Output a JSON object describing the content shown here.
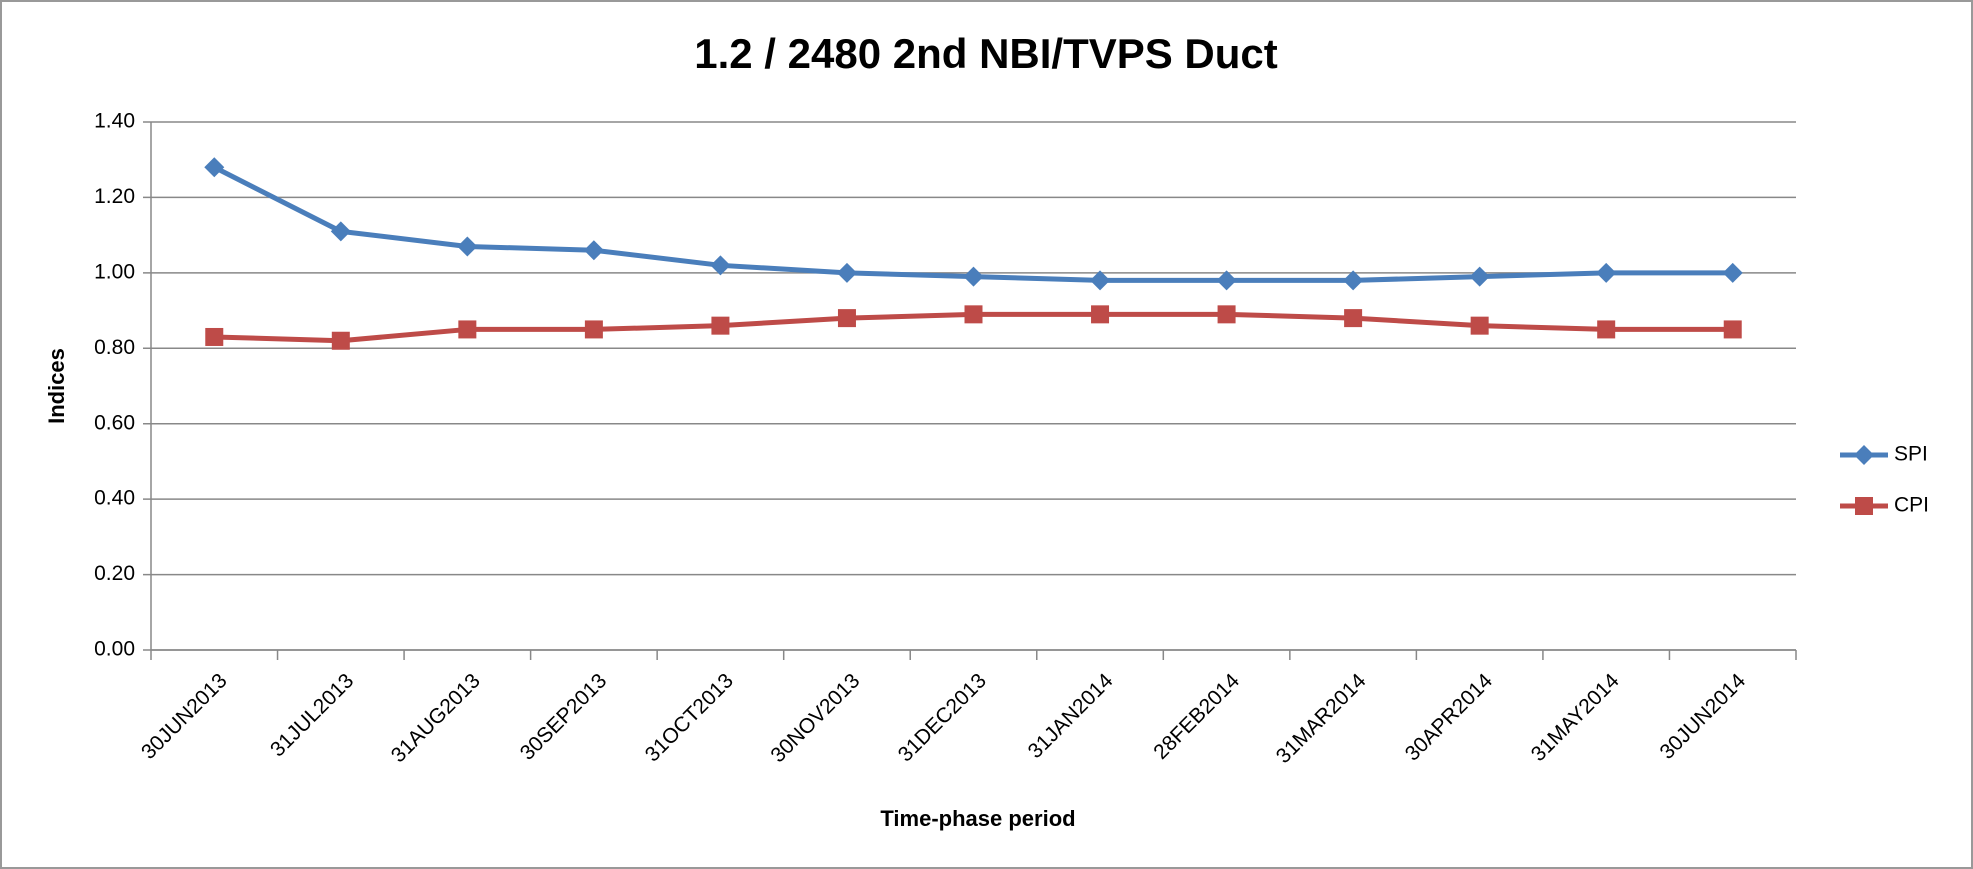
{
  "chart_data": {
    "type": "line",
    "title": "1.2 / 2480 2nd NBI/TVPS Duct",
    "x_label": "Time-phase period",
    "y_label": "Indices",
    "categories": [
      "30JUN2013",
      "31JUL2013",
      "31AUG2013",
      "30SEP2013",
      "31OCT2013",
      "30NOV2013",
      "31DEC2013",
      "31JAN2014",
      "28FEB2014",
      "31MAR2014",
      "30APR2014",
      "31MAY2014",
      "30JUN2014"
    ],
    "series": [
      {
        "name": "SPI",
        "color": "#4a7ebb",
        "marker": "diamond",
        "values": [
          1.28,
          1.11,
          1.07,
          1.06,
          1.02,
          1.0,
          0.99,
          0.98,
          0.98,
          0.98,
          0.99,
          1.0,
          1.0
        ]
      },
      {
        "name": "CPI",
        "color": "#be4b48",
        "marker": "square",
        "values": [
          0.83,
          0.82,
          0.85,
          0.85,
          0.86,
          0.88,
          0.89,
          0.89,
          0.89,
          0.88,
          0.86,
          0.85,
          0.85
        ]
      }
    ],
    "ylim": [
      0,
      1.4
    ],
    "yticks": [
      {
        "value": 0,
        "label": "0.00"
      },
      {
        "value": 0.2,
        "label": "0.20"
      },
      {
        "value": 0.4,
        "label": "0.40"
      },
      {
        "value": 0.6,
        "label": "0.60"
      },
      {
        "value": 0.8,
        "label": "0.80"
      },
      {
        "value": 1,
        "label": "1.00"
      },
      {
        "value": 1.2,
        "label": "1.20"
      },
      {
        "value": 1.4,
        "label": "1.40"
      }
    ],
    "grid": true,
    "legend": "right"
  }
}
